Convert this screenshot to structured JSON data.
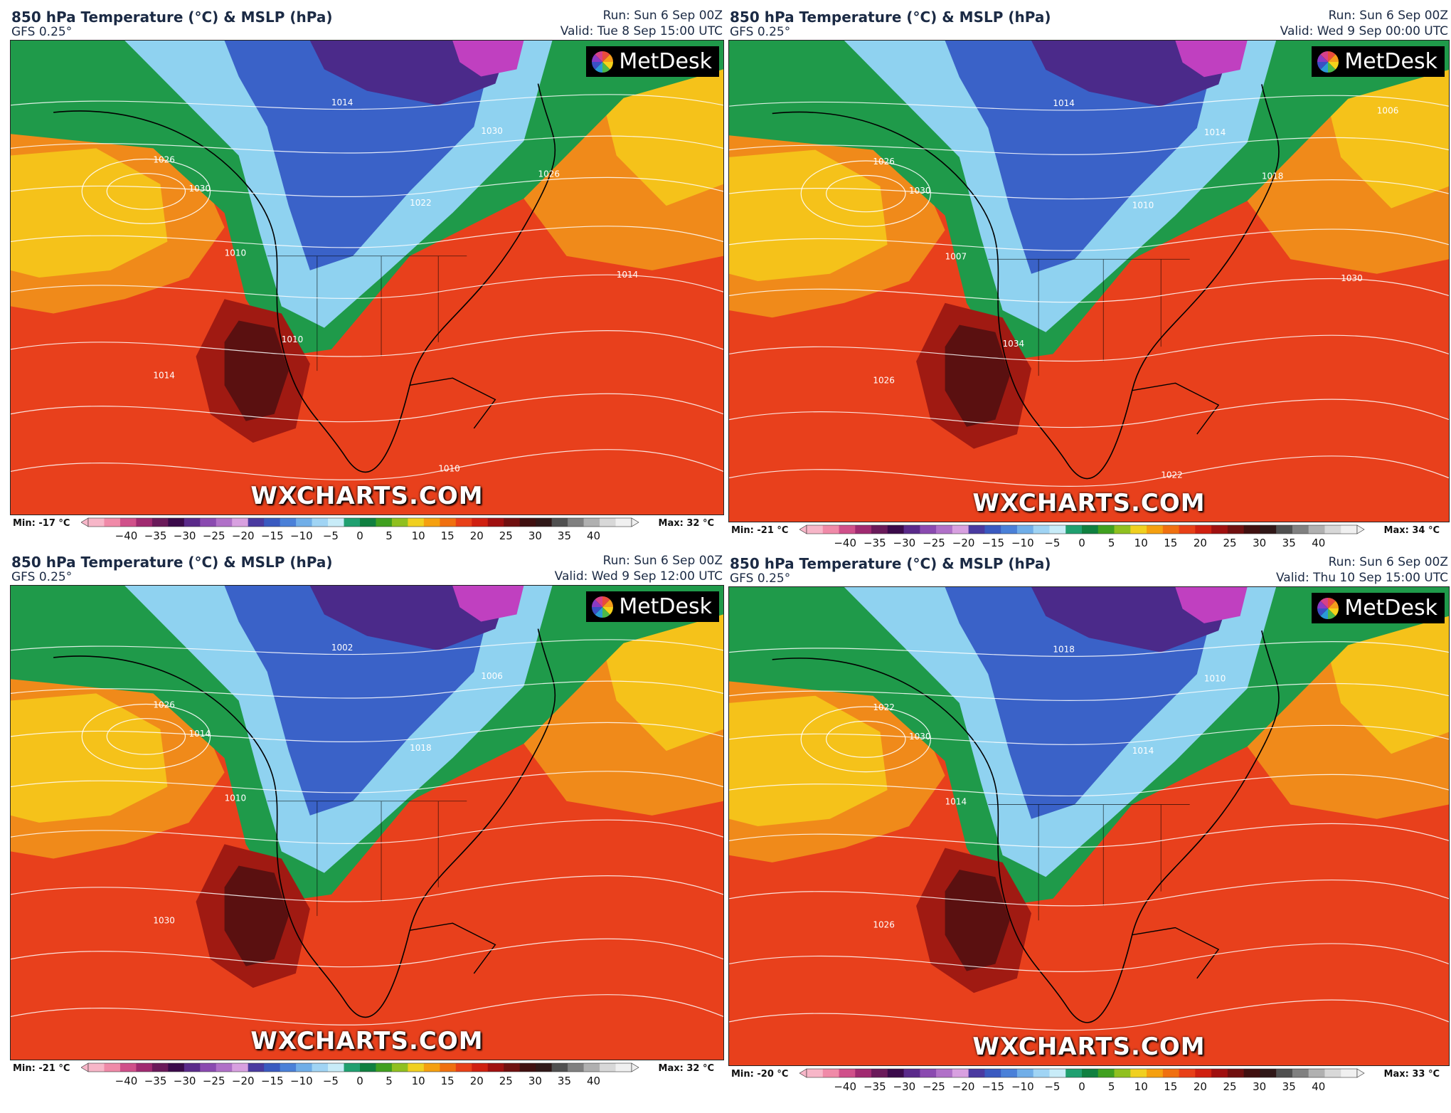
{
  "panels": [
    {
      "title": "850 hPa Temperature (°C) & MSLP (hPa)",
      "model": "GFS 0.25°",
      "run": "Run: Sun 6 Sep 00Z",
      "valid": "Valid: Tue 8 Sep 15:00 UTC",
      "brand": "MetDesk",
      "watermark": "WXCHARTS.COM",
      "min_label": "Min: -17 °C",
      "max_label": "Max: 32 °C",
      "colorbar_ticks": [
        "−40",
        "−35",
        "−30",
        "−25",
        "−20",
        "−15",
        "−10",
        "−5",
        "0",
        "5",
        "10",
        "15",
        "20",
        "25",
        "30",
        "35",
        "40"
      ],
      "isobar_labels": [
        "1010",
        "1014",
        "1026",
        "1030",
        "1014",
        "1022",
        "1030",
        "1026",
        "1010",
        "1014",
        "1010"
      ]
    },
    {
      "title": "850 hPa Temperature (°C) & MSLP (hPa)",
      "model": "GFS 0.25°",
      "run": "Run: Sun 6 Sep 00Z",
      "valid": "Valid: Wed 9 Sep 00:00 UTC",
      "brand": "MetDesk",
      "watermark": "WXCHARTS.COM",
      "min_label": "Min: -21 °C",
      "max_label": "Max: 34 °C",
      "colorbar_ticks": [
        "−40",
        "−35",
        "−30",
        "−25",
        "−20",
        "−15",
        "−10",
        "−5",
        "0",
        "5",
        "10",
        "15",
        "20",
        "25",
        "30",
        "35",
        "40"
      ],
      "isobar_labels": [
        "1007",
        "1014",
        "1026",
        "1030",
        "1026",
        "1010",
        "1014",
        "1018",
        "1034",
        "1030",
        "1022",
        "1006"
      ]
    },
    {
      "title": "850 hPa Temperature (°C) & MSLP (hPa)",
      "model": "GFS 0.25°",
      "run": "Run: Sun 6 Sep 00Z",
      "valid": "Valid: Wed 9 Sep 12:00 UTC",
      "brand": "MetDesk",
      "watermark": "WXCHARTS.COM",
      "min_label": "Min: -21 °C",
      "max_label": "Max: 32 °C",
      "colorbar_ticks": [
        "−40",
        "−35",
        "−30",
        "−25",
        "−20",
        "−15",
        "−10",
        "−5",
        "0",
        "5",
        "10",
        "15",
        "20",
        "25",
        "30",
        "35",
        "40"
      ],
      "isobar_labels": [
        "1010",
        "1002",
        "1026",
        "1014",
        "1030",
        "1018",
        "1006"
      ]
    },
    {
      "title": "850 hPa Temperature (°C) & MSLP (hPa)",
      "model": "GFS 0.25°",
      "run": "Run: Sun 6 Sep 00Z",
      "valid": "Valid: Thu 10 Sep 15:00 UTC",
      "brand": "MetDesk",
      "watermark": "WXCHARTS.COM",
      "min_label": "Min: -20 °C",
      "max_label": "Max: 33 °C",
      "colorbar_ticks": [
        "−40",
        "−35",
        "−30",
        "−25",
        "−20",
        "−15",
        "−10",
        "−5",
        "0",
        "5",
        "10",
        "15",
        "20",
        "25",
        "30",
        "35",
        "40"
      ],
      "isobar_labels": [
        "1014",
        "1018",
        "1022",
        "1030",
        "1026",
        "1014",
        "1010"
      ]
    }
  ],
  "colors": {
    "ocean_warm": "#e8401c",
    "ocean_orange": "#f08a1a",
    "yellow": "#f5c21a",
    "green": "#1f9a4a",
    "light_blue": "#8fd2f0",
    "blue": "#3a62c8",
    "purple": "#4b2a8a",
    "magenta": "#c040c0",
    "dark_red": "#5a1010",
    "isobar": "#ffffff"
  }
}
